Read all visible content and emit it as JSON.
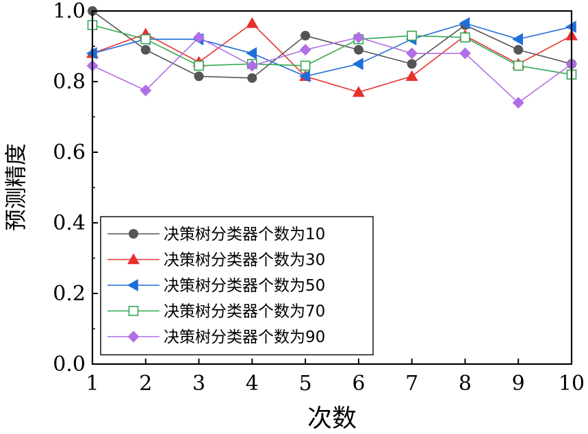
{
  "chart_data": {
    "type": "line",
    "title": "",
    "xlabel": "次数",
    "ylabel": "预测精度",
    "x": [
      1,
      2,
      3,
      4,
      5,
      6,
      7,
      8,
      9,
      10
    ],
    "xlim": [
      1,
      10
    ],
    "ylim": [
      0.0,
      1.0
    ],
    "x_ticks": [
      "1",
      "2",
      "3",
      "4",
      "5",
      "6",
      "7",
      "8",
      "9",
      "10"
    ],
    "y_ticks": [
      "0.0",
      "0.2",
      "0.4",
      "0.6",
      "0.8",
      "1.0"
    ],
    "y_tick_values": [
      0.0,
      0.2,
      0.4,
      0.6,
      0.8,
      1.0
    ],
    "grid": false,
    "legend_position": "lower-left",
    "series": [
      {
        "name": "决策树分类器个数为10",
        "color": "#555555",
        "marker": "circle",
        "values": [
          1.0,
          0.89,
          0.815,
          0.81,
          0.93,
          0.89,
          0.85,
          0.96,
          0.89,
          0.85
        ]
      },
      {
        "name": "决策树分类器个数为30",
        "color": "#e8312f",
        "marker": "triangle-up",
        "values": [
          0.88,
          0.935,
          0.855,
          0.965,
          0.815,
          0.77,
          0.815,
          0.93,
          0.85,
          0.93
        ]
      },
      {
        "name": "决策树分类器个数为50",
        "color": "#1f6fd8",
        "marker": "triangle-left",
        "values": [
          0.88,
          0.92,
          0.92,
          0.88,
          0.815,
          0.85,
          0.92,
          0.965,
          0.92,
          0.955
        ]
      },
      {
        "name": "决策树分类器个数为70",
        "color": "#2fa84f",
        "marker": "square-open",
        "values": [
          0.96,
          0.92,
          0.845,
          0.85,
          0.845,
          0.92,
          0.93,
          0.925,
          0.845,
          0.82
        ]
      },
      {
        "name": "决策树分类器个数为90",
        "color": "#b06fe6",
        "marker": "diamond",
        "values": [
          0.845,
          0.775,
          0.925,
          0.845,
          0.89,
          0.925,
          0.88,
          0.88,
          0.74,
          0.85
        ]
      }
    ]
  }
}
